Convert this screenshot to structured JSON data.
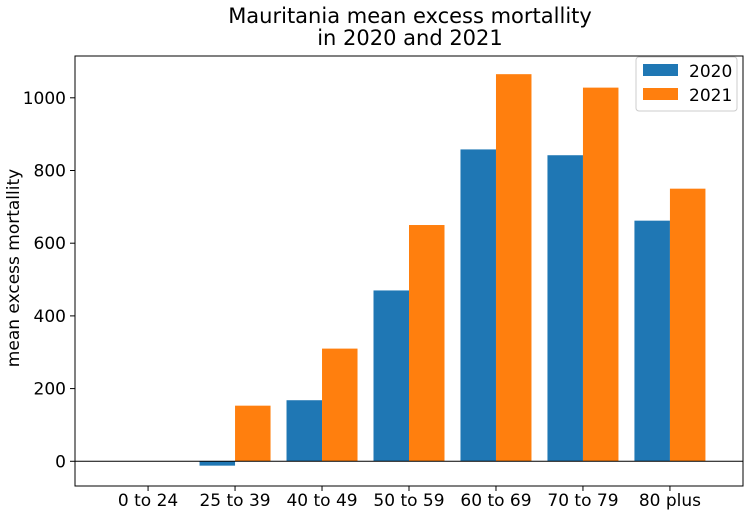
{
  "chart_data": {
    "type": "bar",
    "title_lines": [
      "Mauritania mean excess mortallity",
      "in 2020 and 2021"
    ],
    "xlabel": "",
    "ylabel": "mean excess mortallity",
    "categories": [
      "0 to 24",
      "25 to 39",
      "40 to 49",
      "50 to 59",
      "60 to 69",
      "70 to 79",
      "80 plus"
    ],
    "series": [
      {
        "name": "2020",
        "color": "#1f77b4",
        "values": [
          0,
          -12,
          168,
          470,
          858,
          842,
          662
        ]
      },
      {
        "name": "2021",
        "color": "#ff7f0e",
        "values": [
          0,
          153,
          310,
          650,
          1065,
          1028,
          750
        ]
      }
    ],
    "ylim": [
      -68,
      1115
    ],
    "yticks": [
      0,
      200,
      400,
      600,
      800,
      1000
    ],
    "zero_line": true,
    "grid": false,
    "legend_position": "top-right"
  }
}
